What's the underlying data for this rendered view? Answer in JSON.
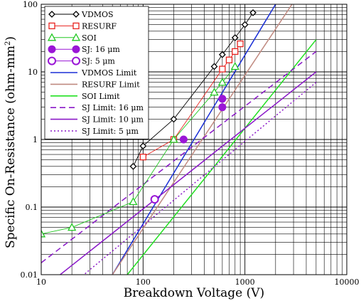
{
  "chart_data": {
    "type": "scatter",
    "xlabel": "Breakdown Voltage (V)",
    "ylabel_main": "Specific On-Resistance (ohm-mm",
    "ylabel_sup": "2",
    "ylabel_tail": ")",
    "x_scale": "log",
    "y_scale": "log",
    "xlim": [
      10,
      10000
    ],
    "ylim": [
      0.01,
      100
    ],
    "x_ticks": [
      {
        "v": 10,
        "label": "10"
      },
      {
        "v": 100,
        "label": "100"
      },
      {
        "v": 1000,
        "label": "1000"
      },
      {
        "v": 10000,
        "label": "10000"
      }
    ],
    "y_ticks": [
      {
        "v": 0.01,
        "label": "0.01"
      },
      {
        "v": 0.1,
        "label": "0.1"
      },
      {
        "v": 1,
        "label": "1"
      },
      {
        "v": 10,
        "label": "10"
      },
      {
        "v": 100,
        "label": "100"
      }
    ],
    "grid": true,
    "legend_position": "top-left",
    "series": [
      {
        "name": "VDMOS",
        "kind": "markers",
        "marker": "diamond",
        "color": "#000000",
        "x": [
          80,
          100,
          200,
          500,
          600,
          800,
          1000,
          1200
        ],
        "y": [
          0.4,
          0.8,
          2,
          12,
          18,
          32,
          50,
          75
        ]
      },
      {
        "name": "RESURF",
        "kind": "markers",
        "marker": "square",
        "color": "#e8231f",
        "x": [
          100,
          200,
          600,
          700,
          800,
          900
        ],
        "y": [
          0.55,
          1.0,
          11,
          15,
          20,
          26
        ]
      },
      {
        "name": "SOI",
        "kind": "markers",
        "marker": "triangle",
        "color": "#22c822",
        "x": [
          10,
          20,
          80,
          200,
          500,
          600,
          800
        ],
        "y": [
          0.04,
          0.05,
          0.12,
          1.0,
          5,
          7,
          12
        ]
      },
      {
        "name": "SJ: 16 μm",
        "kind": "markers",
        "marker": "circle-filled",
        "color": "#9a16d6",
        "x": [
          250,
          600,
          600
        ],
        "y": [
          1.0,
          3,
          4
        ]
      },
      {
        "name": "SJ: 5 μm",
        "kind": "markers",
        "marker": "circle-open",
        "color": "#9a16d6",
        "x": [
          130
        ],
        "y": [
          0.13
        ]
      },
      {
        "name": "VDMOS Limit",
        "kind": "line",
        "style": "solid",
        "color": "#1a2fd6",
        "x": [
          50,
          2000
        ],
        "y": [
          0.01,
          100
        ]
      },
      {
        "name": "RESURF Limit",
        "kind": "line",
        "style": "solid",
        "color": "#c08a80",
        "x": [
          50,
          2900
        ],
        "y": [
          0.01,
          100
        ]
      },
      {
        "name": "SOI Limit",
        "kind": "line",
        "style": "solid",
        "color": "#22e022",
        "x": [
          70,
          5000
        ],
        "y": [
          0.01,
          30
        ]
      },
      {
        "name": "SJ Limit: 16 μm",
        "kind": "line",
        "style": "dashed",
        "color": "#8a18c8",
        "x": [
          10,
          5000
        ],
        "y": [
          0.015,
          20
        ]
      },
      {
        "name": "SJ Limit: 10 μm",
        "kind": "line",
        "style": "solid",
        "color": "#8a18c8",
        "x": [
          10,
          5000
        ],
        "y": [
          0.006,
          10
        ]
      },
      {
        "name": "SJ Limit: 5 μm",
        "kind": "line",
        "style": "dotted",
        "color": "#8a18c8",
        "x": [
          10,
          5000
        ],
        "y": [
          0.003,
          7
        ]
      }
    ]
  }
}
